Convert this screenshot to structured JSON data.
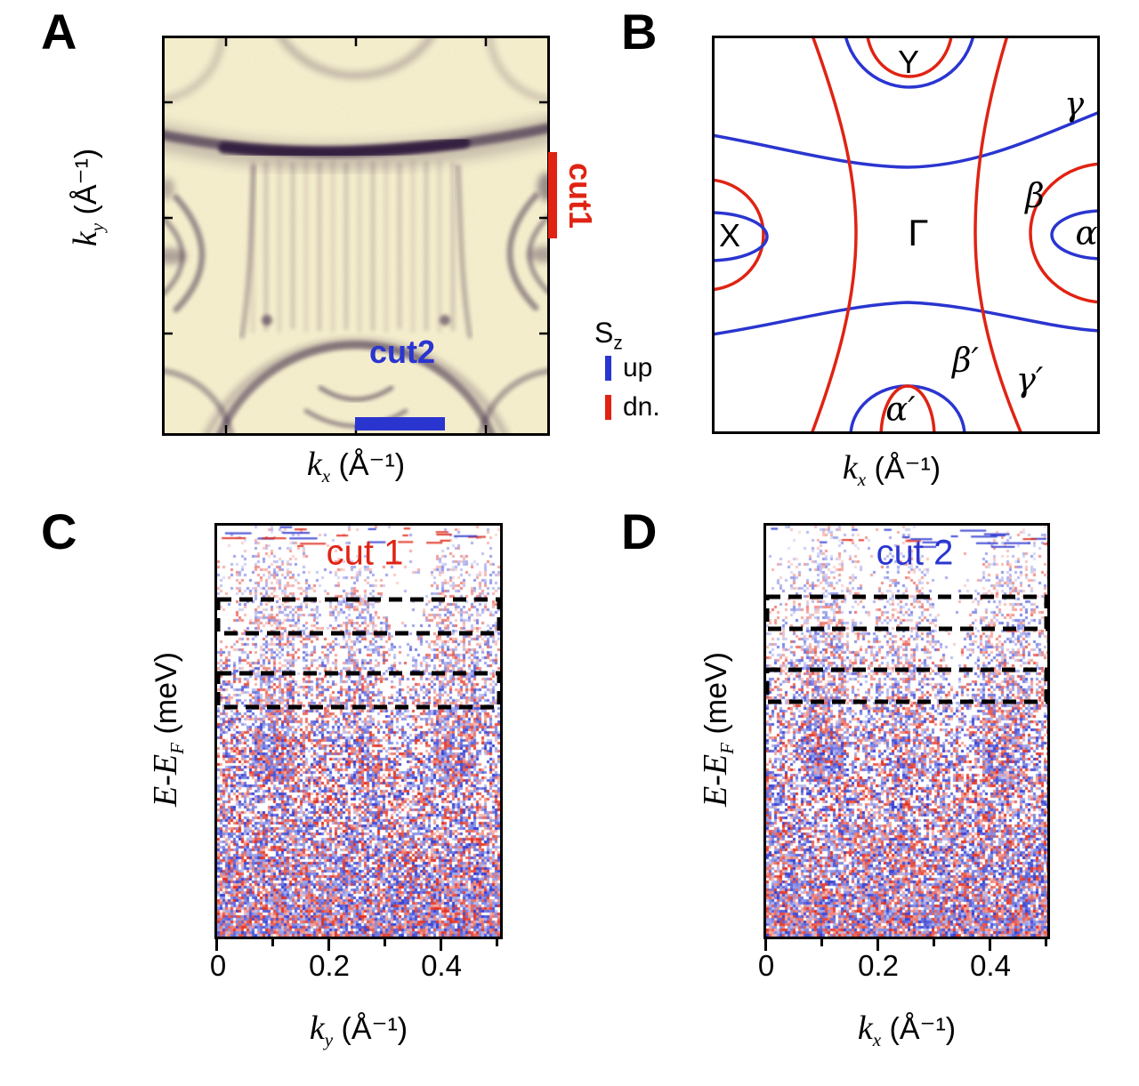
{
  "colors": {
    "red": "#e02313",
    "blue": "#2a35d0",
    "map_bg": "#f9f4cf",
    "map_dark": "#2b1638",
    "black": "#000000"
  },
  "panel_a": {
    "letter": "A",
    "ylabel": {
      "sym": "k",
      "sub": "y",
      "unit": " (Å⁻¹)"
    },
    "xlabel": {
      "sym": "k",
      "sub": "x",
      "unit": " (Å⁻¹)"
    },
    "cut1_label": "cut1",
    "cut2_label": "cut2"
  },
  "panel_b": {
    "letter": "B",
    "xlabel": {
      "sym": "k",
      "sub": "x",
      "unit": " (Å⁻¹)"
    },
    "bands": {
      "Y": "Y",
      "gamma": "γ",
      "X": "X",
      "Gamma": "Γ",
      "beta": "β",
      "alpha": "α",
      "beta_p": "β′",
      "alpha_p": "α′",
      "gamma_p": "γ′"
    },
    "legend": {
      "sym": "S",
      "sub": "z",
      "up": "up",
      "dn": "dn."
    }
  },
  "panel_c": {
    "letter": "C",
    "title": "cut 1",
    "ylabel": {
      "sym": "E-E",
      "sub": "F",
      "unit": " (meV)"
    },
    "xlabel": {
      "sym": "k",
      "sub": "y",
      "unit": " (Å⁻¹)"
    },
    "xticks": [
      "0",
      "0.2",
      "0.4"
    ]
  },
  "panel_d": {
    "letter": "D",
    "title": "cut 2",
    "ylabel": {
      "sym": "E-E",
      "sub": "F",
      "unit": " (meV)"
    },
    "xlabel": {
      "sym": "k",
      "sub": "x",
      "unit": " (Å⁻¹)"
    },
    "xticks": [
      "0",
      "0.2",
      "0.4"
    ]
  }
}
